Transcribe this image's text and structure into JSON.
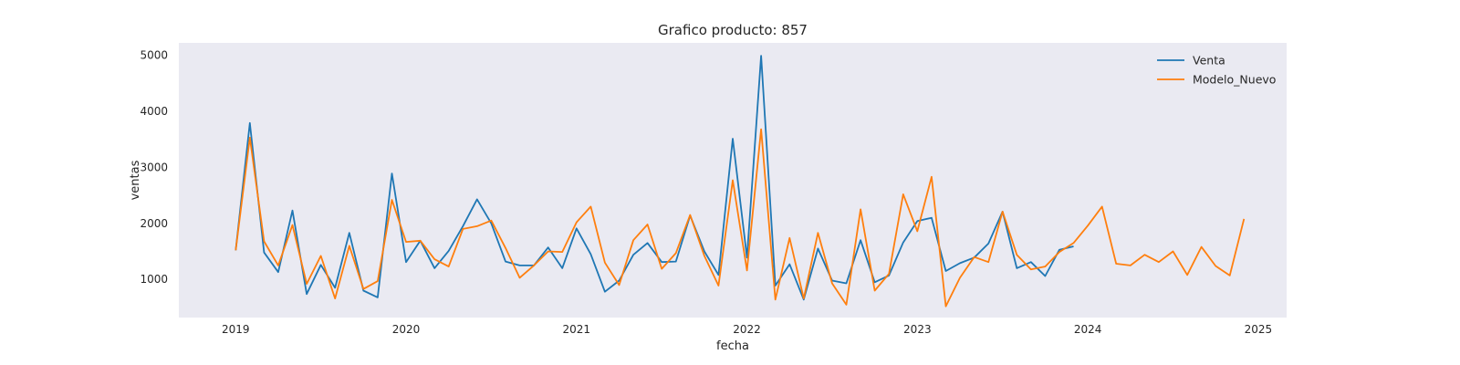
{
  "chart_data": {
    "type": "line",
    "title": "Grafico producto: 857",
    "xlabel": "fecha",
    "ylabel": "ventas",
    "x_ticks": [
      "2019",
      "2020",
      "2021",
      "2022",
      "2023",
      "2024",
      "2025"
    ],
    "y_ticks": [
      1000,
      2000,
      3000,
      4000,
      5000
    ],
    "xlim": [
      "2018-09",
      "2025-03"
    ],
    "ylim": [
      320,
      5220
    ],
    "grid": false,
    "legend_position": "top-right",
    "background_color": "#EAEAF2",
    "series": [
      {
        "name": "Venta",
        "color": "#1F77B4",
        "x": [
          "2019-01",
          "2019-02",
          "2019-03",
          "2019-04",
          "2019-05",
          "2019-06",
          "2019-07",
          "2019-08",
          "2019-09",
          "2019-10",
          "2019-11",
          "2019-12",
          "2020-01",
          "2020-02",
          "2020-03",
          "2020-04",
          "2020-05",
          "2020-06",
          "2020-07",
          "2020-08",
          "2020-09",
          "2020-10",
          "2020-11",
          "2020-12",
          "2021-01",
          "2021-02",
          "2021-03",
          "2021-04",
          "2021-05",
          "2021-06",
          "2021-07",
          "2021-08",
          "2021-09",
          "2021-10",
          "2021-11",
          "2021-12",
          "2022-01",
          "2022-02",
          "2022-03",
          "2022-04",
          "2022-05",
          "2022-06",
          "2022-07",
          "2022-08",
          "2022-09",
          "2022-10",
          "2022-11",
          "2022-12",
          "2023-01",
          "2023-02",
          "2023-03",
          "2023-04",
          "2023-05",
          "2023-06",
          "2023-07",
          "2023-08",
          "2023-09",
          "2023-10",
          "2023-11",
          "2023-12"
        ],
        "values": [
          1520,
          3790,
          1480,
          1130,
          2230,
          740,
          1260,
          850,
          1830,
          800,
          680,
          2890,
          1310,
          1690,
          1200,
          1510,
          1950,
          2430,
          2000,
          1320,
          1250,
          1250,
          1570,
          1200,
          1910,
          1450,
          780,
          980,
          1440,
          1650,
          1310,
          1320,
          2140,
          1500,
          1080,
          3510,
          1390,
          4990,
          890,
          1270,
          640,
          1550,
          980,
          930,
          1700,
          950,
          1070,
          1660,
          2040,
          2100,
          1150,
          1290,
          1390,
          1640,
          2210,
          1200,
          1310,
          1060,
          1530,
          1590
        ]
      },
      {
        "name": "Modelo_Nuevo",
        "color": "#FF7F0E",
        "x": [
          "2019-01",
          "2019-02",
          "2019-03",
          "2019-04",
          "2019-05",
          "2019-06",
          "2019-07",
          "2019-08",
          "2019-09",
          "2019-10",
          "2019-11",
          "2019-12",
          "2020-01",
          "2020-02",
          "2020-03",
          "2020-04",
          "2020-05",
          "2020-06",
          "2020-07",
          "2020-08",
          "2020-09",
          "2020-10",
          "2020-11",
          "2020-12",
          "2021-01",
          "2021-02",
          "2021-03",
          "2021-04",
          "2021-05",
          "2021-06",
          "2021-07",
          "2021-08",
          "2021-09",
          "2021-10",
          "2021-11",
          "2021-12",
          "2022-01",
          "2022-02",
          "2022-03",
          "2022-04",
          "2022-05",
          "2022-06",
          "2022-07",
          "2022-08",
          "2022-09",
          "2022-10",
          "2022-11",
          "2022-12",
          "2023-01",
          "2023-02",
          "2023-03",
          "2023-04",
          "2023-05",
          "2023-06",
          "2023-07",
          "2023-08",
          "2023-09",
          "2023-10",
          "2023-11",
          "2023-12",
          "2024-01",
          "2024-02",
          "2024-03",
          "2024-04",
          "2024-05",
          "2024-06",
          "2024-07",
          "2024-08",
          "2024-09",
          "2024-10",
          "2024-11",
          "2024-12"
        ],
        "values": [
          1520,
          3530,
          1680,
          1250,
          1970,
          920,
          1420,
          660,
          1600,
          830,
          970,
          2420,
          1670,
          1690,
          1360,
          1230,
          1900,
          1950,
          2050,
          1560,
          1030,
          1250,
          1500,
          1490,
          2020,
          2300,
          1300,
          900,
          1700,
          1980,
          1190,
          1470,
          2150,
          1420,
          890,
          2770,
          1160,
          3680,
          640,
          1740,
          660,
          1830,
          930,
          550,
          2250,
          800,
          1100,
          2520,
          1860,
          2830,
          520,
          1030,
          1400,
          1310,
          2210,
          1440,
          1180,
          1230,
          1490,
          1650,
          1960,
          2300,
          1280,
          1250,
          1440,
          1310,
          1500,
          1080,
          1580,
          1240,
          1070,
          2080
        ]
      }
    ]
  }
}
